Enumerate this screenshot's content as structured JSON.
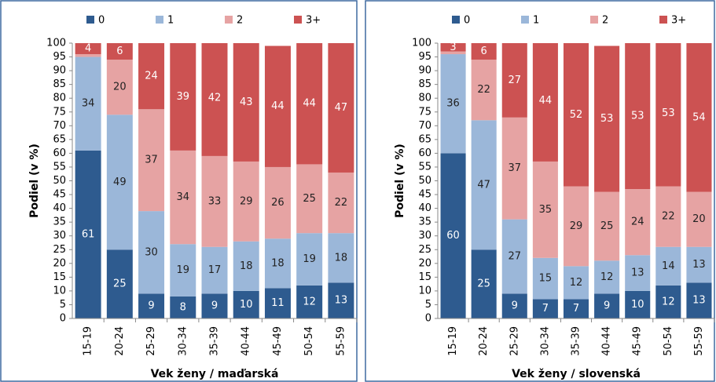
{
  "chart_data": [
    {
      "type": "stacked-bar",
      "x_label": "Vek ženy / maďarská",
      "y_label": "Podiel (v %)",
      "categories": [
        "15-19",
        "20-24",
        "25-29",
        "30-34",
        "35-39",
        "40-44",
        "45-49",
        "50-54",
        "55-59"
      ],
      "ylim": [
        0,
        100
      ],
      "yticks": [
        0,
        5,
        10,
        15,
        20,
        25,
        30,
        35,
        40,
        45,
        50,
        55,
        60,
        65,
        70,
        75,
        80,
        85,
        90,
        95,
        100
      ],
      "series": [
        {
          "name": "0",
          "color": "#2e5b8f",
          "values": [
            61,
            25,
            9,
            8,
            9,
            10,
            11,
            12,
            13
          ]
        },
        {
          "name": "1",
          "color": "#9bb7d9",
          "values": [
            34,
            49,
            30,
            19,
            17,
            18,
            18,
            19,
            18
          ]
        },
        {
          "name": "2",
          "color": "#e6a3a3",
          "values": [
            1,
            20,
            37,
            34,
            33,
            29,
            26,
            25,
            22
          ],
          "value_labels": [
            null,
            "20",
            "37",
            "34",
            "33",
            "29",
            "26",
            "25",
            "22"
          ]
        },
        {
          "name": "3+",
          "color": "#cc5252",
          "values": [
            4,
            6,
            24,
            39,
            42,
            43,
            44,
            44,
            47
          ]
        }
      ]
    },
    {
      "type": "stacked-bar",
      "x_label": "Vek ženy / slovenská",
      "y_label": "Podiel (v %)",
      "categories": [
        "15-19",
        "20-24",
        "25-29",
        "30-34",
        "35-39",
        "40-44",
        "45-49",
        "50-54",
        "55-59"
      ],
      "ylim": [
        0,
        100
      ],
      "yticks": [
        0,
        5,
        10,
        15,
        20,
        25,
        30,
        35,
        40,
        45,
        50,
        55,
        60,
        65,
        70,
        75,
        80,
        85,
        90,
        95,
        100
      ],
      "series": [
        {
          "name": "0",
          "color": "#2e5b8f",
          "values": [
            60,
            25,
            9,
            7,
            7,
            9,
            10,
            12,
            13
          ]
        },
        {
          "name": "1",
          "color": "#9bb7d9",
          "values": [
            36,
            47,
            27,
            15,
            12,
            12,
            13,
            14,
            13
          ]
        },
        {
          "name": "2",
          "color": "#e6a3a3",
          "values": [
            1,
            22,
            37,
            35,
            29,
            25,
            24,
            22,
            20
          ],
          "value_labels": [
            null,
            "22",
            "37",
            "35",
            "29",
            "25",
            "24",
            "22",
            "20"
          ]
        },
        {
          "name": "3+",
          "color": "#cc5252",
          "values": [
            3,
            6,
            27,
            44,
            52,
            53,
            53,
            53,
            54
          ]
        }
      ]
    }
  ]
}
